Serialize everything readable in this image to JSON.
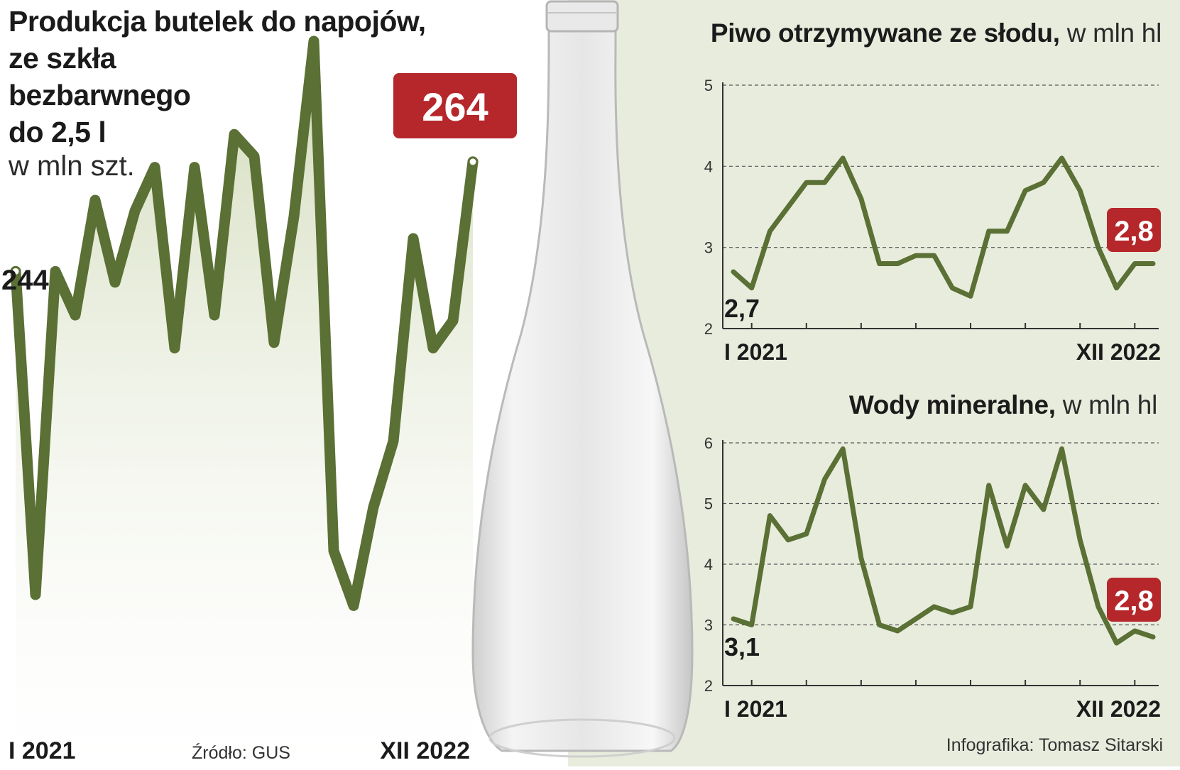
{
  "colors": {
    "line": "#5a7034",
    "area_fill": "#d7dfc2",
    "right_bg": "#e8ecdd",
    "badge": "#b5272a",
    "bottle": "#dcdcdc",
    "grid": "#555555",
    "text": "#1b1b1b"
  },
  "main_chart": {
    "title_lines": [
      "Produkcja butelek do napojów,",
      "ze szkła",
      "bezbarwnego",
      "do 2,5 l"
    ],
    "unit": "w mln szt.",
    "first_label": "244",
    "last_badge": "264",
    "x_start_label": "I 2021",
    "x_end_label": "XII 2022",
    "source": "Źródło: GUS"
  },
  "beer_chart": {
    "title": "Piwo otrzymywane ze słodu,",
    "unit": " w mln hl",
    "first_label": "2,7",
    "last_badge": "2,8",
    "x_start_label": "I 2021",
    "x_end_label": "XII 2022"
  },
  "water_chart": {
    "title": "Wody mineralne,",
    "unit": " w mln hl",
    "first_label": "3,1",
    "last_badge": "2,8",
    "x_start_label": "I 2021",
    "x_end_label": "XII 2022"
  },
  "credit": "Infografika: Tomasz Sitarski",
  "chart_data": [
    {
      "type": "area",
      "title": "Produkcja butelek do napojów, ze szkła bezbarwnego do 2,5 l",
      "ylabel": "w mln szt.",
      "x_range": [
        "I 2021",
        "XII 2022"
      ],
      "ylim": [
        175,
        275
      ],
      "grid": false,
      "values": [
        244,
        185,
        244,
        236,
        257,
        242,
        255,
        263,
        230,
        263,
        236,
        269,
        265,
        231,
        254,
        286,
        193,
        183,
        201,
        213,
        250,
        230,
        235,
        264
      ]
    },
    {
      "type": "line",
      "title": "Piwo otrzymywane ze słodu",
      "ylabel": "w mln hl",
      "x_range": [
        "I 2021",
        "XII 2022"
      ],
      "ylim": [
        2,
        5
      ],
      "yticks": [
        2,
        3,
        4,
        5
      ],
      "grid": true,
      "values": [
        2.7,
        2.5,
        3.2,
        3.5,
        3.8,
        3.8,
        4.1,
        3.6,
        2.8,
        2.8,
        2.9,
        2.9,
        2.5,
        2.4,
        3.2,
        3.2,
        3.7,
        3.8,
        4.1,
        3.7,
        3.0,
        2.5,
        2.8,
        2.8
      ]
    },
    {
      "type": "line",
      "title": "Wody mineralne",
      "ylabel": "w mln hl",
      "x_range": [
        "I 2021",
        "XII 2022"
      ],
      "ylim": [
        2,
        6
      ],
      "yticks": [
        2,
        3,
        4,
        5,
        6
      ],
      "grid": true,
      "values": [
        3.1,
        3.0,
        4.8,
        4.4,
        4.5,
        5.4,
        5.9,
        4.1,
        3.0,
        2.9,
        3.1,
        3.3,
        3.2,
        3.3,
        5.3,
        4.3,
        5.3,
        4.9,
        5.9,
        4.4,
        3.3,
        2.7,
        2.9,
        2.8
      ]
    }
  ]
}
